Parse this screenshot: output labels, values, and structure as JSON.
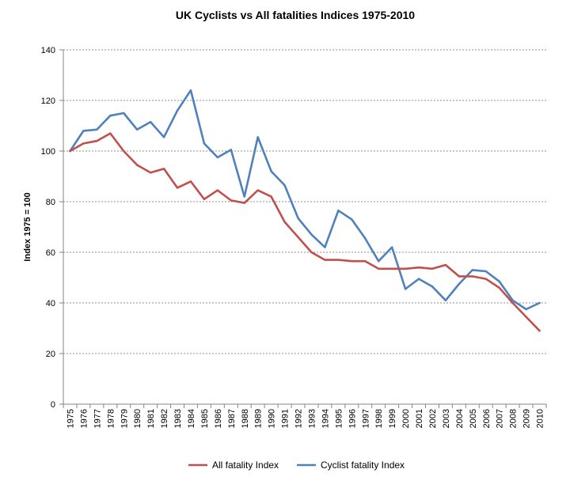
{
  "chart_data": {
    "type": "line",
    "title": "UK Cyclists vs All fatalities Indices 1975-2010",
    "xlabel": "",
    "ylabel": "Index 1975 = 100",
    "ylim": [
      0,
      140
    ],
    "yticks": [
      0,
      20,
      40,
      60,
      80,
      100,
      120,
      140
    ],
    "grid": "horizontal dashed",
    "legend_position": "bottom",
    "categories": [
      "1975",
      "1976",
      "1977",
      "1978",
      "1979",
      "1980",
      "1981",
      "1982",
      "1983",
      "1984",
      "1985",
      "1986",
      "1987",
      "1988",
      "1989",
      "1990",
      "1991",
      "1992",
      "1993",
      "1994",
      "1995",
      "1996",
      "1997",
      "1998",
      "1999",
      "2000",
      "2001",
      "2002",
      "2003",
      "2004",
      "2005",
      "2006",
      "2007",
      "2008",
      "2009",
      "2010"
    ],
    "series": [
      {
        "name": "All fatality Index",
        "color": "#c0504d",
        "values": [
          100,
          103,
          104,
          107,
          100,
          94.5,
          91.5,
          93,
          85.5,
          88,
          81,
          84.5,
          80.5,
          79.5,
          84.5,
          82,
          72,
          66,
          60,
          57,
          57,
          56.5,
          56.5,
          53.5,
          53.5,
          53.5,
          54,
          53.5,
          55,
          50.5,
          50.5,
          49.5,
          46,
          40,
          34.5,
          29
        ]
      },
      {
        "name": "Cyclist fatality Index",
        "color": "#4f81bd",
        "values": [
          100,
          108,
          108.5,
          114,
          115,
          108.5,
          111.5,
          105.5,
          116,
          124,
          103,
          97.5,
          100.5,
          82,
          105.5,
          92,
          86.5,
          73.5,
          67,
          62,
          76.5,
          73,
          65.5,
          56.5,
          62,
          45.5,
          49.5,
          46.5,
          41,
          47.5,
          53,
          52.5,
          48.5,
          41,
          37.5,
          40
        ]
      }
    ]
  }
}
